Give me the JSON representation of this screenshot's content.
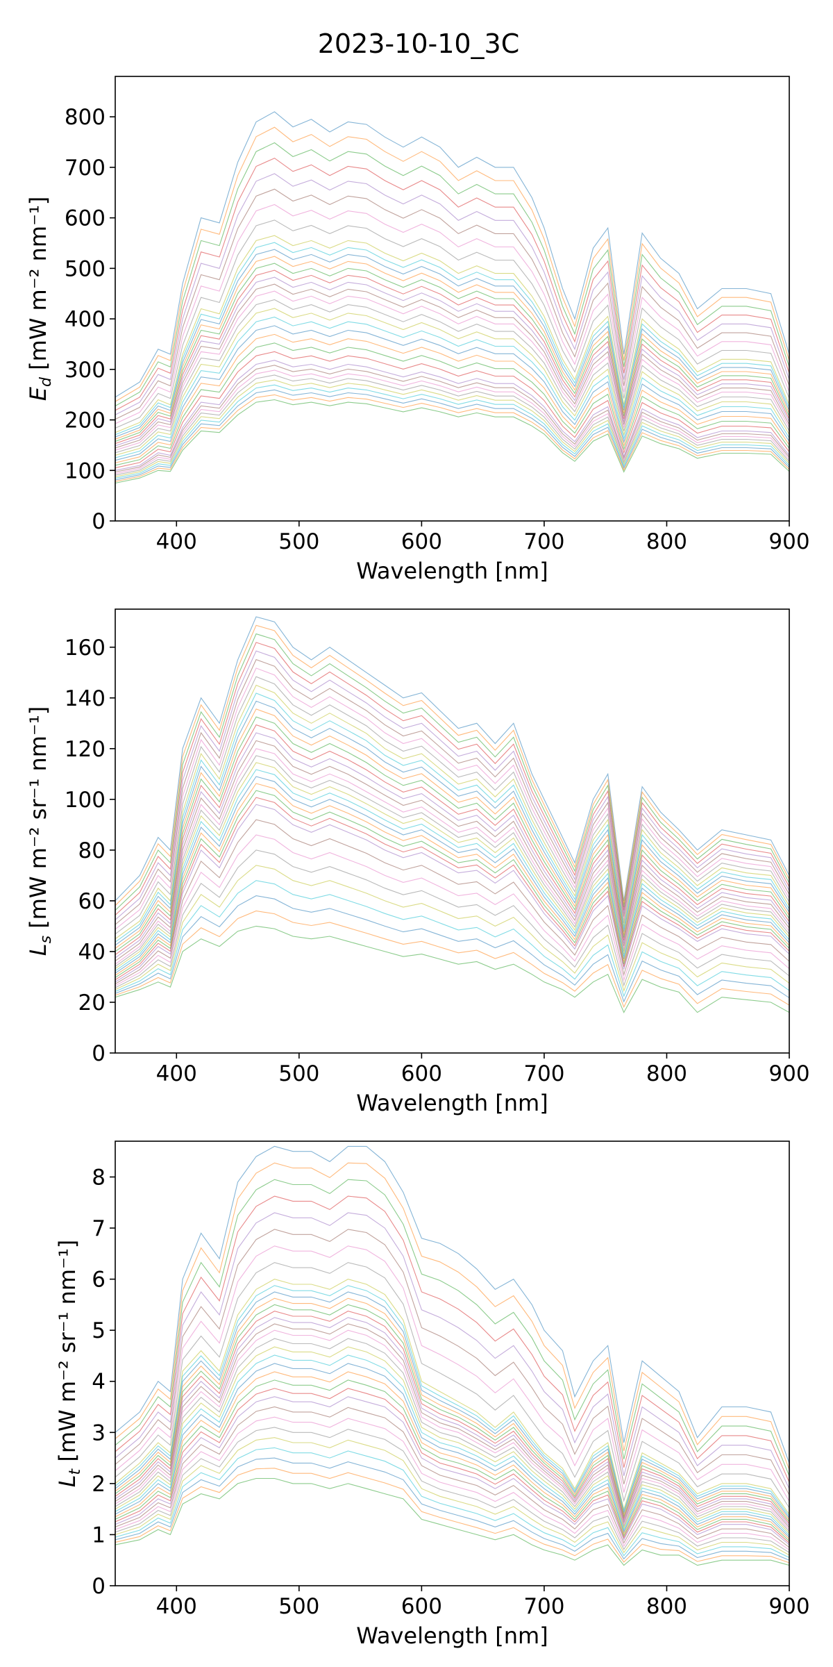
{
  "figure": {
    "title": "2023-10-10_3C"
  },
  "palette": [
    "#1f77b4",
    "#ff7f0e",
    "#2ca02c",
    "#d62728",
    "#9467bd",
    "#8c564b",
    "#e377c2",
    "#7f7f7f",
    "#bcbd22",
    "#17becf"
  ],
  "chart_data": [
    {
      "type": "line",
      "ylabel_main": "E",
      "ylabel_sub": "d",
      "ylabel_unit": " [mW m⁻² nm⁻¹]",
      "xlabel": "Wavelength [nm]",
      "xlim": [
        350,
        900
      ],
      "ylim": [
        0,
        880
      ],
      "xticks": [
        400,
        500,
        600,
        700,
        800,
        900
      ],
      "yticks": [
        0,
        100,
        200,
        300,
        400,
        500,
        600,
        700,
        800
      ],
      "x": [
        350,
        370,
        385,
        395,
        405,
        420,
        435,
        450,
        465,
        480,
        495,
        510,
        525,
        540,
        555,
        570,
        585,
        600,
        615,
        630,
        645,
        660,
        675,
        690,
        700,
        715,
        725,
        740,
        752,
        765,
        780,
        795,
        810,
        825,
        845,
        865,
        885,
        900
      ],
      "series": [
        {
          "values": [
            245,
            275,
            340,
            330,
            470,
            600,
            590,
            710,
            790,
            810,
            780,
            795,
            770,
            790,
            785,
            760,
            740,
            760,
            740,
            700,
            720,
            700,
            700,
            640,
            580,
            460,
            400,
            540,
            580,
            330,
            570,
            520,
            490,
            420,
            460,
            460,
            450,
            330
          ]
        },
        {
          "values": [
            175,
            195,
            240,
            230,
            330,
            420,
            410,
            500,
            555,
            565,
            545,
            555,
            540,
            555,
            550,
            530,
            515,
            530,
            515,
            490,
            505,
            490,
            490,
            445,
            405,
            320,
            280,
            375,
            405,
            230,
            400,
            365,
            340,
            295,
            320,
            320,
            315,
            230
          ]
        },
        {
          "values": [
            140,
            155,
            190,
            185,
            265,
            335,
            330,
            400,
            445,
            455,
            435,
            445,
            430,
            445,
            440,
            425,
            410,
            425,
            410,
            390,
            405,
            390,
            390,
            355,
            325,
            255,
            225,
            300,
            325,
            185,
            320,
            290,
            270,
            235,
            255,
            255,
            250,
            185
          ]
        },
        {
          "values": [
            100,
            110,
            135,
            130,
            185,
            235,
            230,
            280,
            310,
            318,
            305,
            310,
            300,
            310,
            305,
            295,
            285,
            295,
            285,
            272,
            282,
            272,
            272,
            248,
            226,
            178,
            157,
            210,
            226,
            128,
            222,
            203,
            190,
            165,
            178,
            178,
            175,
            130
          ]
        },
        {
          "values": [
            75,
            85,
            100,
            98,
            140,
            178,
            175,
            210,
            235,
            240,
            230,
            235,
            228,
            235,
            232,
            224,
            216,
            224,
            216,
            206,
            214,
            206,
            206,
            188,
            172,
            135,
            118,
            158,
            172,
            97,
            168,
            153,
            143,
            124,
            134,
            134,
            132,
            98
          ]
        }
      ]
    },
    {
      "type": "line",
      "ylabel_main": "L",
      "ylabel_sub": "s",
      "ylabel_unit": " [mW m⁻² sr⁻¹ nm⁻¹]",
      "xlabel": "Wavelength [nm]",
      "xlim": [
        350,
        900
      ],
      "ylim": [
        0,
        175
      ],
      "xticks": [
        400,
        500,
        600,
        700,
        800,
        900
      ],
      "yticks": [
        0,
        20,
        40,
        60,
        80,
        100,
        120,
        140,
        160
      ],
      "x": [
        350,
        370,
        385,
        395,
        405,
        420,
        435,
        450,
        465,
        480,
        495,
        510,
        525,
        540,
        555,
        570,
        585,
        600,
        615,
        630,
        645,
        660,
        675,
        690,
        700,
        715,
        725,
        740,
        752,
        765,
        780,
        795,
        810,
        825,
        845,
        865,
        885,
        900
      ],
      "series": [
        {
          "values": [
            60,
            70,
            85,
            80,
            120,
            140,
            130,
            155,
            172,
            170,
            160,
            155,
            160,
            155,
            150,
            145,
            140,
            142,
            135,
            128,
            130,
            122,
            130,
            110,
            100,
            85,
            75,
            100,
            110,
            60,
            105,
            95,
            88,
            80,
            88,
            86,
            84,
            70
          ]
        },
        {
          "values": [
            45,
            52,
            65,
            60,
            95,
            118,
            108,
            130,
            145,
            142,
            134,
            130,
            134,
            130,
            126,
            120,
            116,
            118,
            112,
            106,
            108,
            101,
            108,
            92,
            83,
            70,
            62,
            84,
            92,
            50,
            88,
            79,
            73,
            66,
            73,
            71,
            70,
            58
          ]
        },
        {
          "values": [
            35,
            42,
            52,
            48,
            78,
            98,
            90,
            108,
            120,
            118,
            110,
            107,
            110,
            107,
            103,
            99,
            95,
            97,
            92,
            87,
            89,
            83,
            89,
            76,
            68,
            58,
            51,
            69,
            76,
            41,
            72,
            65,
            60,
            54,
            60,
            58,
            57,
            48
          ]
        },
        {
          "values": [
            28,
            34,
            42,
            39,
            63,
            80,
            73,
            88,
            98,
            96,
            90,
            87,
            90,
            87,
            84,
            80,
            77,
            79,
            75,
            71,
            72,
            67,
            72,
            62,
            55,
            47,
            41,
            56,
            62,
            33,
            58,
            53,
            49,
            44,
            49,
            47,
            46,
            39
          ]
        },
        {
          "values": [
            22,
            25,
            28,
            26,
            40,
            45,
            42,
            48,
            50,
            49,
            46,
            45,
            46,
            44,
            42,
            40,
            38,
            39,
            37,
            35,
            36,
            33,
            35,
            31,
            28,
            25,
            22,
            28,
            31,
            16,
            29,
            26,
            24,
            16,
            22,
            21,
            20,
            16
          ]
        }
      ]
    },
    {
      "type": "line",
      "ylabel_main": "L",
      "ylabel_sub": "t",
      "ylabel_unit": " [mW m⁻² sr⁻¹ nm⁻¹]",
      "xlabel": "Wavelength [nm]",
      "xlim": [
        350,
        900
      ],
      "ylim": [
        0,
        8.7
      ],
      "xticks": [
        400,
        500,
        600,
        700,
        800,
        900
      ],
      "yticks": [
        0,
        1,
        2,
        3,
        4,
        5,
        6,
        7,
        8
      ],
      "x": [
        350,
        370,
        385,
        395,
        405,
        420,
        435,
        450,
        465,
        480,
        495,
        510,
        525,
        540,
        555,
        570,
        585,
        600,
        615,
        630,
        645,
        660,
        675,
        690,
        700,
        715,
        725,
        740,
        752,
        765,
        780,
        795,
        810,
        825,
        845,
        865,
        885,
        900
      ],
      "series": [
        {
          "values": [
            3.0,
            3.4,
            4.0,
            3.8,
            6.0,
            6.9,
            6.4,
            7.9,
            8.4,
            8.6,
            8.5,
            8.5,
            8.3,
            8.6,
            8.6,
            8.3,
            7.7,
            6.8,
            6.7,
            6.5,
            6.2,
            5.8,
            6.0,
            5.5,
            5.0,
            4.6,
            3.7,
            4.4,
            4.7,
            2.8,
            4.4,
            4.1,
            3.8,
            2.9,
            3.5,
            3.5,
            3.4,
            2.4
          ]
        },
        {
          "values": [
            2.0,
            2.4,
            2.8,
            2.6,
            4.2,
            4.6,
            4.2,
            5.3,
            5.8,
            6.0,
            5.9,
            5.9,
            5.8,
            6.0,
            5.9,
            5.7,
            5.2,
            4.0,
            3.8,
            3.6,
            3.4,
            3.1,
            3.4,
            2.9,
            2.6,
            2.3,
            1.9,
            2.6,
            2.8,
            1.5,
            2.6,
            2.4,
            2.2,
            1.8,
            2.0,
            2.0,
            1.9,
            1.4
          ]
        },
        {
          "values": [
            1.6,
            1.9,
            2.3,
            2.1,
            3.4,
            3.8,
            3.5,
            4.4,
            4.8,
            5.0,
            4.9,
            4.9,
            4.8,
            5.0,
            4.9,
            4.7,
            4.3,
            3.3,
            3.1,
            3.0,
            2.8,
            2.6,
            2.8,
            2.4,
            2.2,
            1.9,
            1.6,
            2.1,
            2.3,
            1.2,
            2.1,
            2.0,
            1.8,
            1.4,
            1.6,
            1.6,
            1.5,
            1.1
          ]
        },
        {
          "values": [
            1.2,
            1.4,
            1.7,
            1.6,
            2.5,
            2.9,
            2.7,
            3.3,
            3.6,
            3.7,
            3.6,
            3.6,
            3.5,
            3.7,
            3.6,
            3.5,
            3.2,
            2.5,
            2.3,
            2.2,
            2.1,
            1.9,
            2.1,
            1.8,
            1.6,
            1.4,
            1.2,
            1.6,
            1.7,
            0.9,
            1.6,
            1.5,
            1.3,
            1.0,
            1.2,
            1.2,
            1.1,
            0.8
          ]
        },
        {
          "values": [
            0.8,
            0.9,
            1.1,
            1.0,
            1.6,
            1.8,
            1.7,
            2.0,
            2.1,
            2.1,
            2.0,
            2.0,
            1.9,
            2.0,
            1.9,
            1.8,
            1.7,
            1.3,
            1.2,
            1.1,
            1.0,
            0.9,
            1.0,
            0.8,
            0.7,
            0.6,
            0.5,
            0.7,
            0.8,
            0.4,
            0.7,
            0.6,
            0.6,
            0.4,
            0.5,
            0.5,
            0.5,
            0.4
          ]
        }
      ]
    }
  ]
}
